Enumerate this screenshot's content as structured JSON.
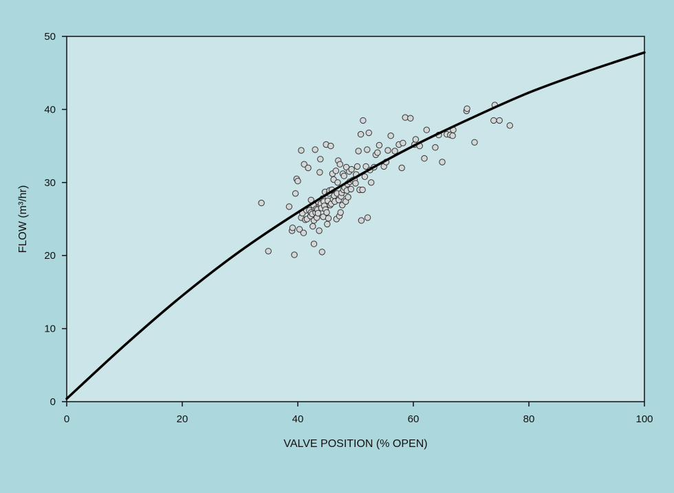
{
  "chart_data": {
    "type": "scatter",
    "xlabel": "VALVE POSITION (% OPEN)",
    "ylabel": "FLOW (m³/hr)",
    "xlim": [
      0,
      100
    ],
    "ylim": [
      0,
      50
    ],
    "xticks": [
      0,
      20,
      40,
      60,
      80,
      100
    ],
    "yticks": [
      0,
      10,
      20,
      30,
      40,
      50
    ],
    "grid": false,
    "colors": {
      "background": "#acd7dc",
      "plot_area": "#cbe5e9",
      "curve": "#000000",
      "marker_fill": "#d3d6d6",
      "marker_edge": "#333333"
    },
    "curve": {
      "x": [
        0,
        10,
        20,
        30,
        40,
        50,
        60,
        70,
        80,
        90,
        100
      ],
      "y": [
        0.4,
        7.7,
        14.5,
        20.6,
        25.9,
        30.7,
        35.0,
        38.8,
        42.3,
        45.2,
        47.8
      ]
    },
    "points": [
      [
        33.7,
        27.2
      ],
      [
        34.9,
        20.6
      ],
      [
        38.5,
        26.7
      ],
      [
        39.0,
        23.4
      ],
      [
        39.1,
        23.8
      ],
      [
        39.4,
        20.1
      ],
      [
        39.6,
        28.5
      ],
      [
        39.8,
        30.5
      ],
      [
        40.0,
        30.2
      ],
      [
        40.3,
        23.6
      ],
      [
        40.6,
        25.2
      ],
      [
        40.6,
        34.4
      ],
      [
        40.8,
        25.8
      ],
      [
        41.0,
        23.1
      ],
      [
        41.1,
        32.5
      ],
      [
        41.3,
        24.9
      ],
      [
        41.5,
        26.2
      ],
      [
        41.6,
        25.0
      ],
      [
        41.8,
        32.0
      ],
      [
        42.0,
        26.2
      ],
      [
        42.2,
        25.4
      ],
      [
        42.3,
        25.9
      ],
      [
        42.3,
        27.6
      ],
      [
        42.5,
        25.7
      ],
      [
        42.6,
        24.0
      ],
      [
        42.7,
        26.9
      ],
      [
        42.8,
        24.8
      ],
      [
        42.8,
        21.6
      ],
      [
        43.0,
        34.5
      ],
      [
        43.1,
        25.9
      ],
      [
        43.2,
        26.4
      ],
      [
        43.3,
        25.2
      ],
      [
        43.4,
        26.3
      ],
      [
        43.5,
        25.8
      ],
      [
        43.6,
        27.3
      ],
      [
        43.7,
        23.4
      ],
      [
        43.8,
        31.4
      ],
      [
        43.9,
        33.2
      ],
      [
        44.0,
        27.1
      ],
      [
        44.1,
        26.5
      ],
      [
        44.2,
        20.5
      ],
      [
        44.3,
        27.8
      ],
      [
        44.4,
        25.3
      ],
      [
        44.5,
        27.4
      ],
      [
        44.6,
        26.8
      ],
      [
        44.7,
        28.7
      ],
      [
        44.8,
        26.3
      ],
      [
        44.9,
        35.2
      ],
      [
        45.0,
        25.9
      ],
      [
        45.1,
        24.3
      ],
      [
        45.2,
        27.5
      ],
      [
        45.3,
        25.1
      ],
      [
        45.4,
        28.5
      ],
      [
        45.5,
        28.9
      ],
      [
        45.6,
        26.9
      ],
      [
        45.7,
        35.0
      ],
      [
        45.8,
        27.1
      ],
      [
        45.9,
        29.0
      ],
      [
        46.0,
        31.2
      ],
      [
        46.1,
        27.7
      ],
      [
        46.2,
        30.4
      ],
      [
        46.3,
        28.2
      ],
      [
        46.4,
        27.4
      ],
      [
        46.6,
        31.6
      ],
      [
        46.7,
        25.0
      ],
      [
        46.8,
        28.5
      ],
      [
        46.9,
        30.0
      ],
      [
        47.0,
        33.0
      ],
      [
        47.1,
        27.6
      ],
      [
        47.2,
        25.4
      ],
      [
        47.3,
        32.5
      ],
      [
        47.4,
        25.9
      ],
      [
        47.5,
        28.1
      ],
      [
        47.6,
        28.6
      ],
      [
        47.7,
        26.9
      ],
      [
        47.8,
        31.2
      ],
      [
        47.9,
        29.0
      ],
      [
        48.0,
        30.9
      ],
      [
        48.1,
        29.3
      ],
      [
        48.3,
        27.4
      ],
      [
        48.4,
        32.1
      ],
      [
        48.5,
        28.9
      ],
      [
        48.6,
        29.8
      ],
      [
        48.7,
        28.0
      ],
      [
        48.9,
        31.5
      ],
      [
        49.0,
        30.1
      ],
      [
        49.2,
        29.1
      ],
      [
        49.3,
        31.8
      ],
      [
        49.5,
        30.3
      ],
      [
        49.8,
        30.4
      ],
      [
        50.0,
        29.9
      ],
      [
        50.1,
        31.1
      ],
      [
        50.3,
        32.2
      ],
      [
        50.5,
        34.3
      ],
      [
        50.7,
        29.0
      ],
      [
        50.9,
        36.6
      ],
      [
        51.0,
        24.8
      ],
      [
        51.2,
        29.0
      ],
      [
        51.3,
        38.5
      ],
      [
        51.6,
        30.8
      ],
      [
        51.8,
        32.2
      ],
      [
        52.0,
        34.5
      ],
      [
        52.1,
        25.2
      ],
      [
        52.3,
        36.8
      ],
      [
        52.5,
        31.7
      ],
      [
        52.7,
        30.0
      ],
      [
        53.2,
        32.1
      ],
      [
        53.5,
        33.8
      ],
      [
        53.8,
        34.1
      ],
      [
        54.1,
        35.1
      ],
      [
        54.9,
        32.2
      ],
      [
        55.3,
        32.8
      ],
      [
        55.6,
        34.4
      ],
      [
        56.1,
        36.4
      ],
      [
        56.8,
        34.3
      ],
      [
        57.5,
        35.2
      ],
      [
        58.0,
        32.0
      ],
      [
        58.2,
        35.4
      ],
      [
        58.6,
        38.9
      ],
      [
        59.5,
        38.8
      ],
      [
        60.2,
        35.2
      ],
      [
        60.4,
        35.9
      ],
      [
        61.1,
        35.0
      ],
      [
        61.9,
        33.3
      ],
      [
        62.3,
        37.2
      ],
      [
        63.8,
        34.8
      ],
      [
        64.4,
        36.5
      ],
      [
        65.0,
        32.8
      ],
      [
        65.8,
        36.6
      ],
      [
        66.4,
        36.5
      ],
      [
        66.8,
        36.4
      ],
      [
        66.9,
        37.2
      ],
      [
        69.2,
        39.8
      ],
      [
        69.3,
        40.1
      ],
      [
        70.6,
        35.5
      ],
      [
        73.9,
        38.5
      ],
      [
        74.1,
        40.6
      ],
      [
        74.9,
        38.5
      ],
      [
        76.7,
        37.8
      ]
    ]
  }
}
